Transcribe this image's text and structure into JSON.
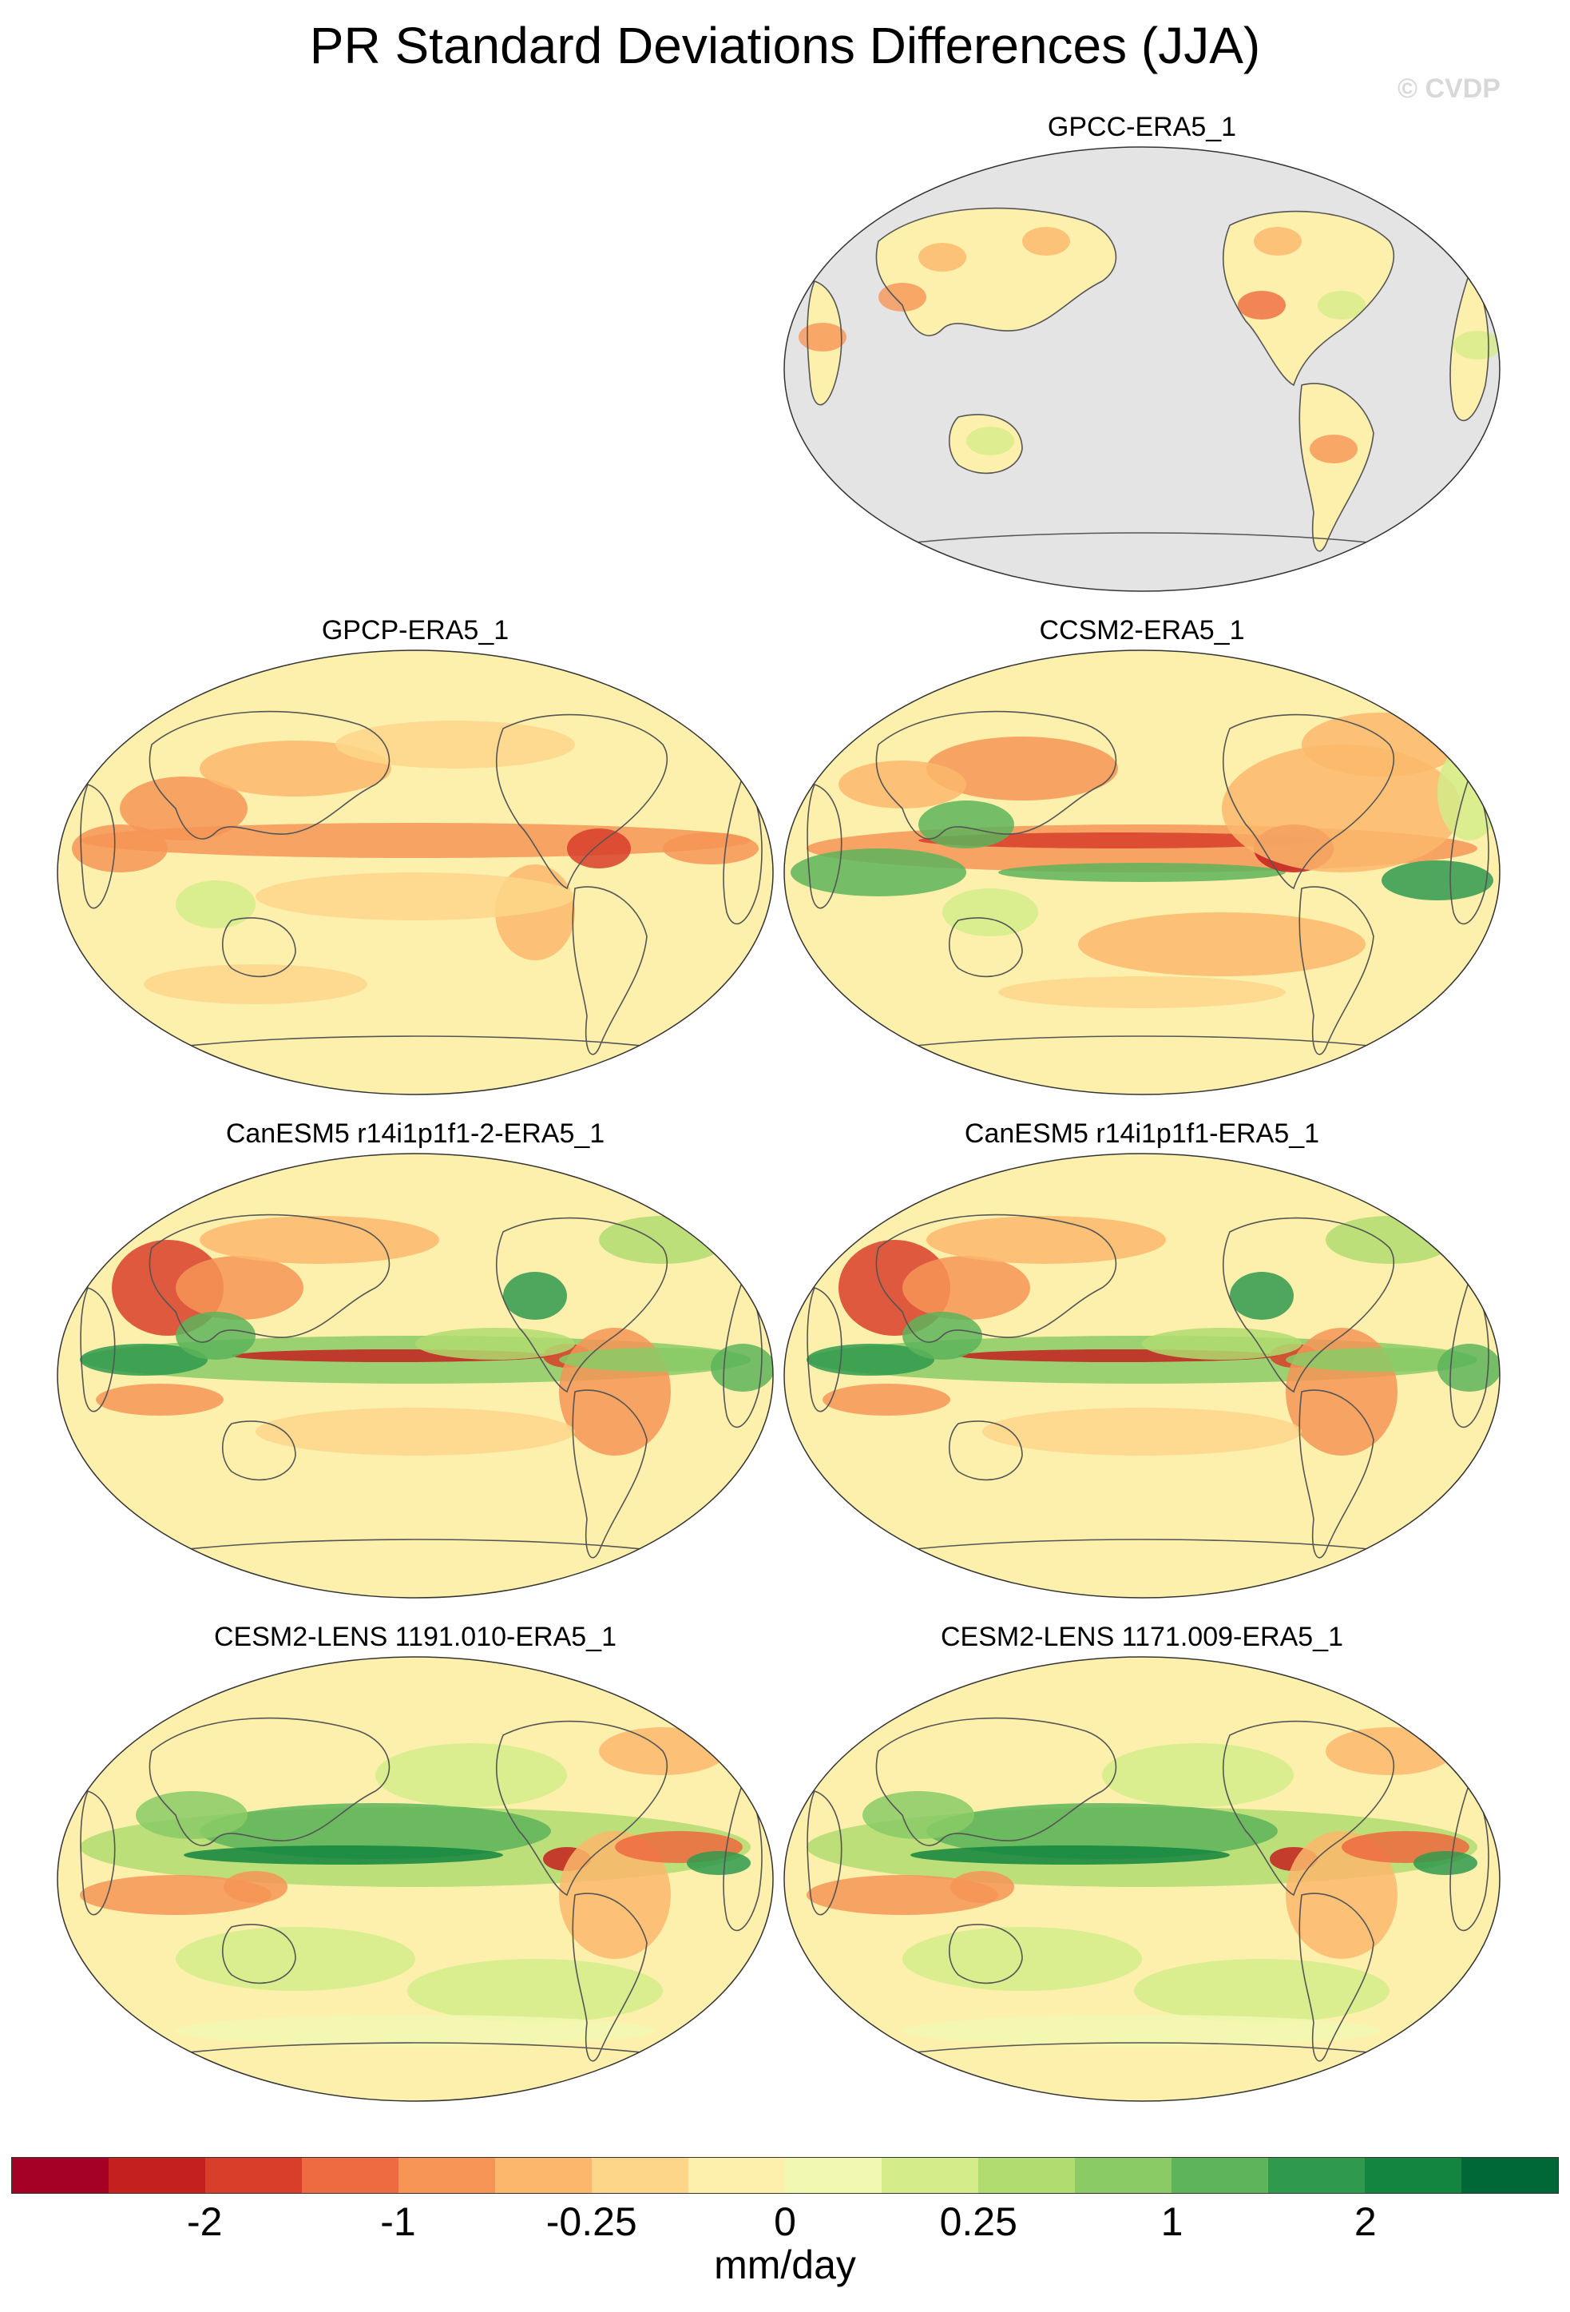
{
  "title": "PR Standard Deviations Differences (JJA)",
  "watermark": "© CVDP",
  "panels": [
    {
      "label": "GPCC-ERA5_1",
      "style": "gpcc"
    },
    {
      "label": "GPCP-ERA5_1",
      "style": "gpcp"
    },
    {
      "label": "CCSM2-ERA5_1",
      "style": "ccsm"
    },
    {
      "label": "CanESM5 r14i1p1f1-2-ERA5_1",
      "style": "canesm"
    },
    {
      "label": "CanESM5 r14i1p1f1-ERA5_1",
      "style": "canesm"
    },
    {
      "label": "CESM2-LENS 1191.010-ERA5_1",
      "style": "cesm"
    },
    {
      "label": "CESM2-LENS 1171.009-ERA5_1",
      "style": "cesm"
    }
  ],
  "colorbar": {
    "colors": [
      "#a50026",
      "#c4201f",
      "#d83e2a",
      "#ee6a40",
      "#f69556",
      "#fbb86c",
      "#fdd68a",
      "#fdf0ac",
      "#f1f8b2",
      "#d4ec8a",
      "#b0dc70",
      "#8acb66",
      "#5db45b",
      "#2f9a4e",
      "#138540",
      "#006837"
    ],
    "tick_labels": [
      "-2",
      "-1",
      "-0.25",
      "0",
      "0.25",
      "1",
      "2"
    ],
    "units": "mm/day"
  }
}
